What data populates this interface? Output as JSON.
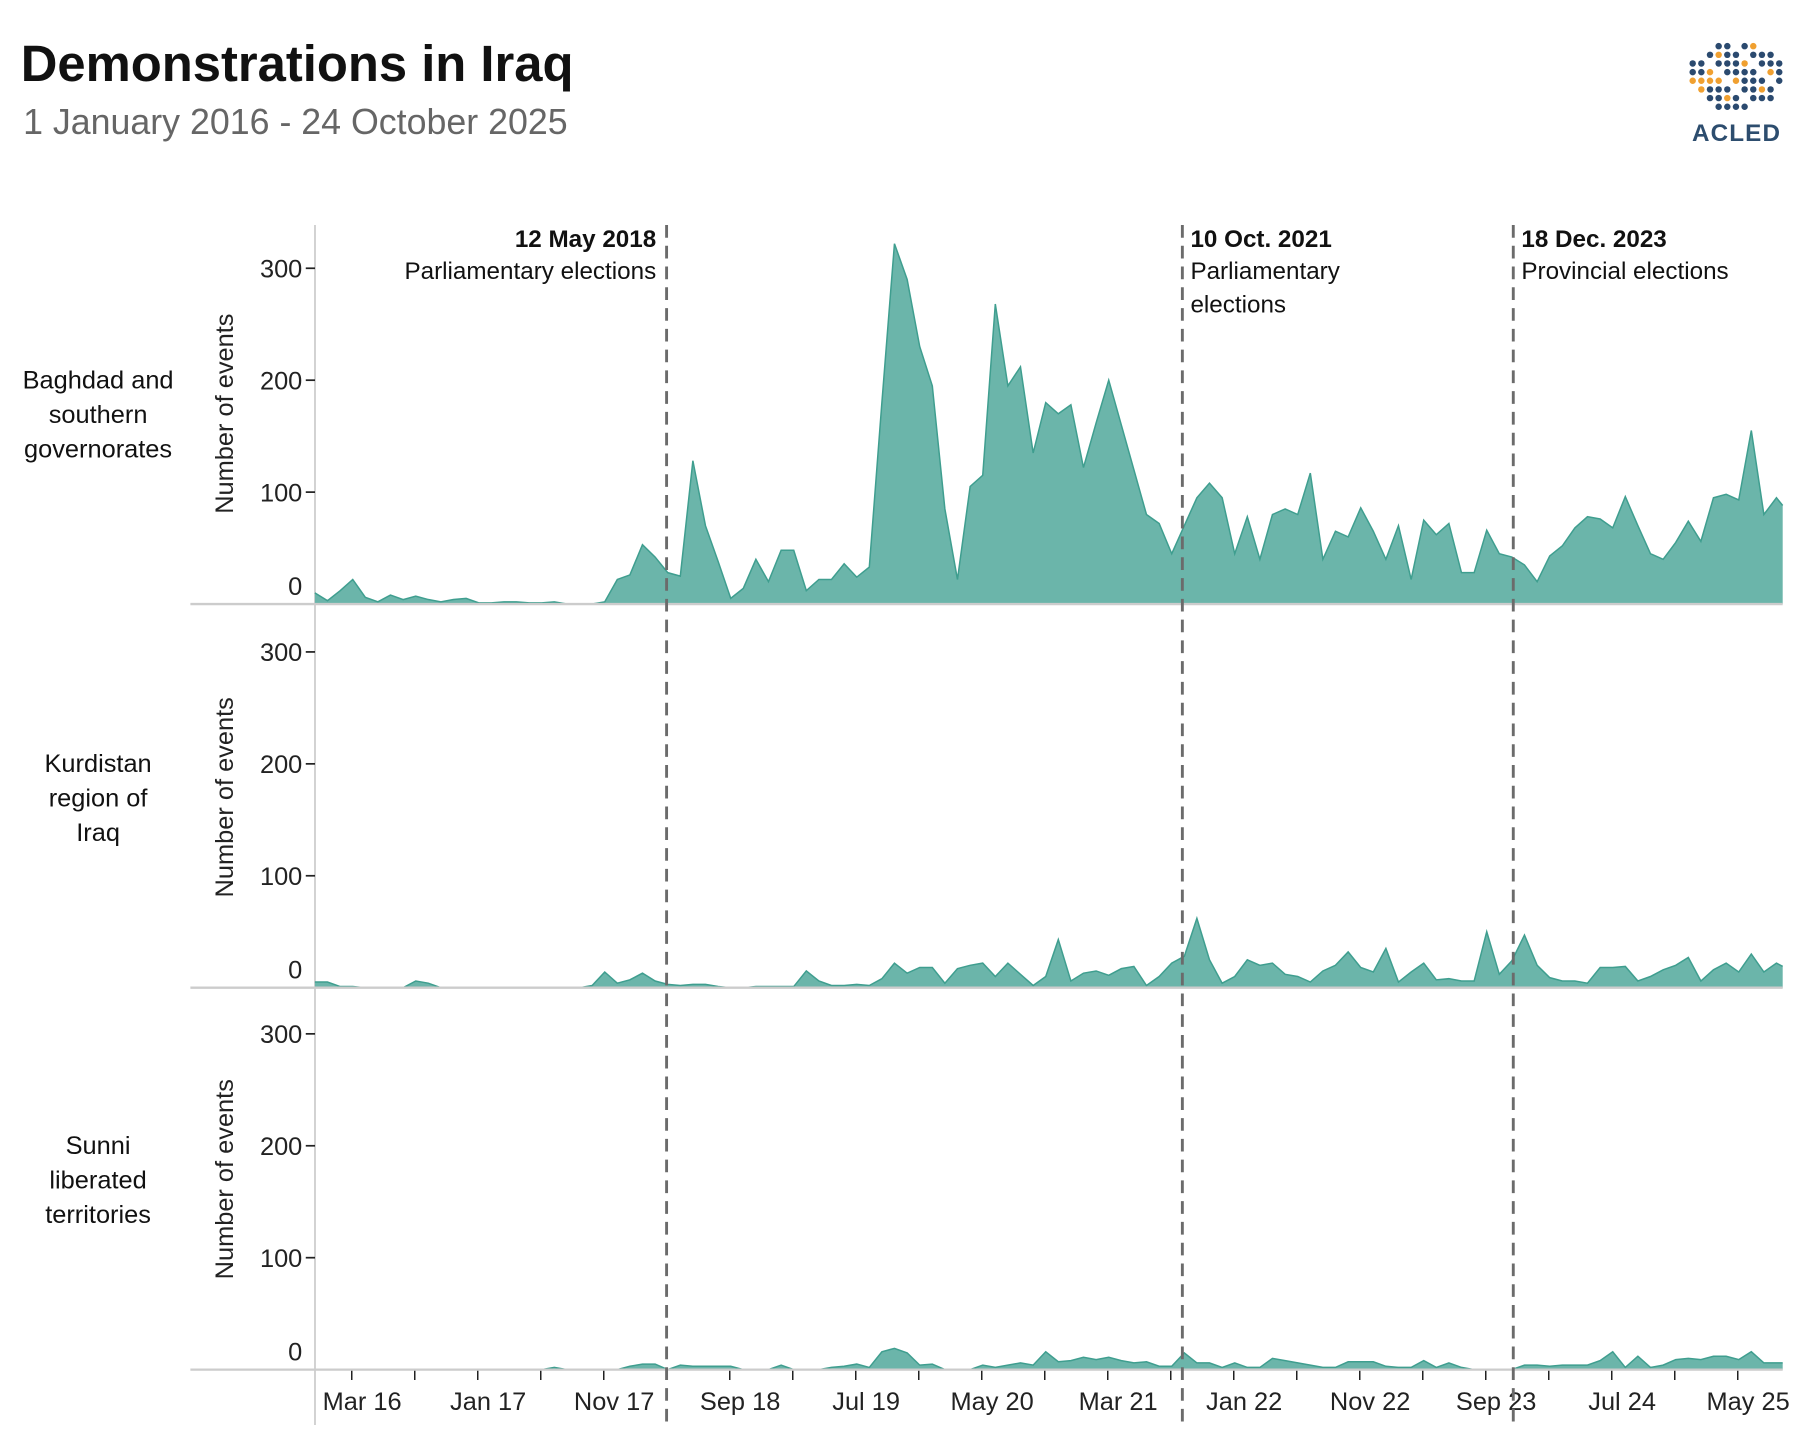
{
  "title": "Demonstrations in Iraq",
  "subtitle": "1 January 2016 - 24 October 2025",
  "logo": {
    "text": "ACLED",
    "colors": [
      "#2b4a6f",
      "#f0a030"
    ]
  },
  "chart_data": {
    "type": "area",
    "ylabel": "Number of events",
    "ylim": [
      0,
      340
    ],
    "yticks": [
      0,
      100,
      200,
      300
    ],
    "grid": false,
    "colors": {
      "fill": "#6bb5aa",
      "stroke": "#3f9e8f",
      "event_line": "#6b6b6b",
      "axis": "#cccccc"
    },
    "x": [
      "2016-01",
      "2016-02",
      "2016-03",
      "2016-04",
      "2016-05",
      "2016-06",
      "2016-07",
      "2016-08",
      "2016-09",
      "2016-10",
      "2016-11",
      "2016-12",
      "2017-01",
      "2017-02",
      "2017-03",
      "2017-04",
      "2017-05",
      "2017-06",
      "2017-07",
      "2017-08",
      "2017-09",
      "2017-10",
      "2017-11",
      "2017-12",
      "2018-01",
      "2018-02",
      "2018-03",
      "2018-04",
      "2018-05",
      "2018-06",
      "2018-07",
      "2018-08",
      "2018-09",
      "2018-10",
      "2018-11",
      "2018-12",
      "2019-01",
      "2019-02",
      "2019-03",
      "2019-04",
      "2019-05",
      "2019-06",
      "2019-07",
      "2019-08",
      "2019-09",
      "2019-10",
      "2019-11",
      "2019-12",
      "2020-01",
      "2020-02",
      "2020-03",
      "2020-04",
      "2020-05",
      "2020-06",
      "2020-07",
      "2020-08",
      "2020-09",
      "2020-10",
      "2020-11",
      "2020-12",
      "2021-01",
      "2021-02",
      "2021-03",
      "2021-04",
      "2021-05",
      "2021-06",
      "2021-07",
      "2021-08",
      "2021-09",
      "2021-10",
      "2021-11",
      "2021-12",
      "2022-01",
      "2022-02",
      "2022-03",
      "2022-04",
      "2022-05",
      "2022-06",
      "2022-07",
      "2022-08",
      "2022-09",
      "2022-10",
      "2022-11",
      "2022-12",
      "2023-01",
      "2023-02",
      "2023-03",
      "2023-04",
      "2023-05",
      "2023-06",
      "2023-07",
      "2023-08",
      "2023-09",
      "2023-10",
      "2023-11",
      "2023-12",
      "2024-01",
      "2024-02",
      "2024-03",
      "2024-04",
      "2024-05",
      "2024-06",
      "2024-07",
      "2024-08",
      "2024-09",
      "2024-10",
      "2024-11",
      "2024-12",
      "2025-01",
      "2025-02",
      "2025-03",
      "2025-04",
      "2025-05",
      "2025-06",
      "2025-07",
      "2025-08",
      "2025-09",
      "2025-10"
    ],
    "xticks": [
      {
        "date": "2016-03",
        "label": "Mar 16"
      },
      {
        "date": "2016-08",
        "label": ""
      },
      {
        "date": "2017-01",
        "label": "Jan 17"
      },
      {
        "date": "2017-06",
        "label": ""
      },
      {
        "date": "2017-11",
        "label": "Nov 17"
      },
      {
        "date": "2018-04",
        "label": ""
      },
      {
        "date": "2018-09",
        "label": "Sep 18"
      },
      {
        "date": "2019-02",
        "label": ""
      },
      {
        "date": "2019-07",
        "label": "Jul 19"
      },
      {
        "date": "2019-12",
        "label": ""
      },
      {
        "date": "2020-05",
        "label": "May 20"
      },
      {
        "date": "2020-10",
        "label": ""
      },
      {
        "date": "2021-03",
        "label": "Mar 21"
      },
      {
        "date": "2021-08",
        "label": ""
      },
      {
        "date": "2022-01",
        "label": "Jan 22"
      },
      {
        "date": "2022-06",
        "label": ""
      },
      {
        "date": "2022-11",
        "label": "Nov 22"
      },
      {
        "date": "2023-04",
        "label": ""
      },
      {
        "date": "2023-09",
        "label": "Sep 23"
      },
      {
        "date": "2024-02",
        "label": ""
      },
      {
        "date": "2024-07",
        "label": "Jul 24"
      },
      {
        "date": "2024-12",
        "label": ""
      },
      {
        "date": "2025-05",
        "label": "May 25"
      }
    ],
    "series": [
      {
        "name": "Baghdad and southern governorates",
        "label_lines": [
          "Baghdad and",
          "southern",
          "governorates"
        ],
        "values": [
          10,
          3,
          12,
          22,
          6,
          2,
          8,
          4,
          7,
          4,
          2,
          4,
          5,
          1,
          1,
          2,
          2,
          1,
          1,
          2,
          0,
          0,
          0,
          2,
          22,
          26,
          53,
          42,
          28,
          25,
          128,
          70,
          38,
          5,
          14,
          40,
          20,
          48,
          48,
          12,
          22,
          22,
          36,
          24,
          33,
          180,
          322,
          290,
          230,
          195,
          85,
          22,
          105,
          115,
          268,
          195,
          212,
          135,
          180,
          170,
          178,
          122,
          162,
          200,
          160,
          120,
          80,
          72,
          45,
          70,
          95,
          108,
          95,
          45,
          78,
          40,
          80,
          85,
          80,
          117,
          40,
          65,
          60,
          86,
          65,
          40,
          70,
          22,
          75,
          62,
          72,
          28,
          28,
          66,
          45,
          42,
          35,
          20,
          43,
          52,
          68,
          78,
          76,
          68,
          96,
          70,
          45,
          40,
          55,
          74,
          56,
          95,
          98,
          93,
          155,
          80,
          95,
          88
        ]
      },
      {
        "name": "Kurdistan region of Iraq",
        "label_lines": [
          "Kurdistan",
          "region of",
          "Iraq"
        ],
        "values": [
          5,
          5,
          1,
          1,
          0,
          0,
          0,
          0,
          6,
          4,
          0,
          0,
          0,
          0,
          0,
          0,
          0,
          0,
          0,
          0,
          0,
          0,
          2,
          14,
          4,
          7,
          13,
          6,
          3,
          2,
          3,
          3,
          1,
          0,
          0,
          1,
          1,
          1,
          1,
          15,
          6,
          2,
          2,
          3,
          2,
          8,
          22,
          13,
          18,
          18,
          4,
          17,
          20,
          22,
          10,
          22,
          12,
          2,
          10,
          43,
          6,
          13,
          15,
          11,
          17,
          19,
          2,
          10,
          22,
          28,
          62,
          25,
          4,
          10,
          25,
          20,
          22,
          12,
          10,
          5,
          15,
          20,
          32,
          18,
          14,
          35,
          5,
          14,
          22,
          7,
          8,
          6,
          6,
          50,
          12,
          24,
          47,
          20,
          9,
          6,
          6,
          4,
          18,
          18,
          19,
          6,
          10,
          16,
          20,
          27,
          6,
          16,
          22,
          14,
          30,
          14,
          22,
          19
        ]
      },
      {
        "name": "Sunni liberated territories",
        "label_lines": [
          "Sunni",
          "liberated",
          "territories"
        ],
        "values": [
          0,
          0,
          0,
          0,
          0,
          0,
          0,
          0,
          0,
          0,
          0,
          0,
          0,
          0,
          0,
          0,
          0,
          0,
          0,
          2,
          0,
          0,
          0,
          0,
          0,
          3,
          5,
          5,
          0,
          4,
          3,
          3,
          3,
          3,
          0,
          0,
          0,
          4,
          0,
          0,
          0,
          2,
          3,
          5,
          2,
          16,
          19,
          15,
          4,
          5,
          0,
          0,
          0,
          4,
          2,
          4,
          6,
          4,
          16,
          7,
          8,
          11,
          9,
          11,
          8,
          6,
          7,
          3,
          3,
          15,
          6,
          6,
          2,
          6,
          2,
          2,
          10,
          8,
          6,
          4,
          2,
          2,
          7,
          7,
          7,
          3,
          2,
          2,
          8,
          2,
          6,
          2,
          0,
          0,
          0,
          0,
          4,
          4,
          3,
          4,
          4,
          4,
          8,
          16,
          2,
          12,
          2,
          4,
          9,
          10,
          9,
          12,
          12,
          9,
          16,
          6,
          6,
          6
        ]
      }
    ],
    "annotations": [
      {
        "date": "2018-05-12",
        "title": "12 May 2018",
        "lines": [
          "Parliamentary elections"
        ],
        "align": "left-of-line"
      },
      {
        "date": "2021-10-10",
        "title": "10 Oct. 2021",
        "lines": [
          "Parliamentary",
          "elections"
        ],
        "align": "right-of-line"
      },
      {
        "date": "2023-12-18",
        "title": "18 Dec. 2023",
        "lines": [
          "Provincial elections"
        ],
        "align": "right-of-line"
      }
    ]
  }
}
